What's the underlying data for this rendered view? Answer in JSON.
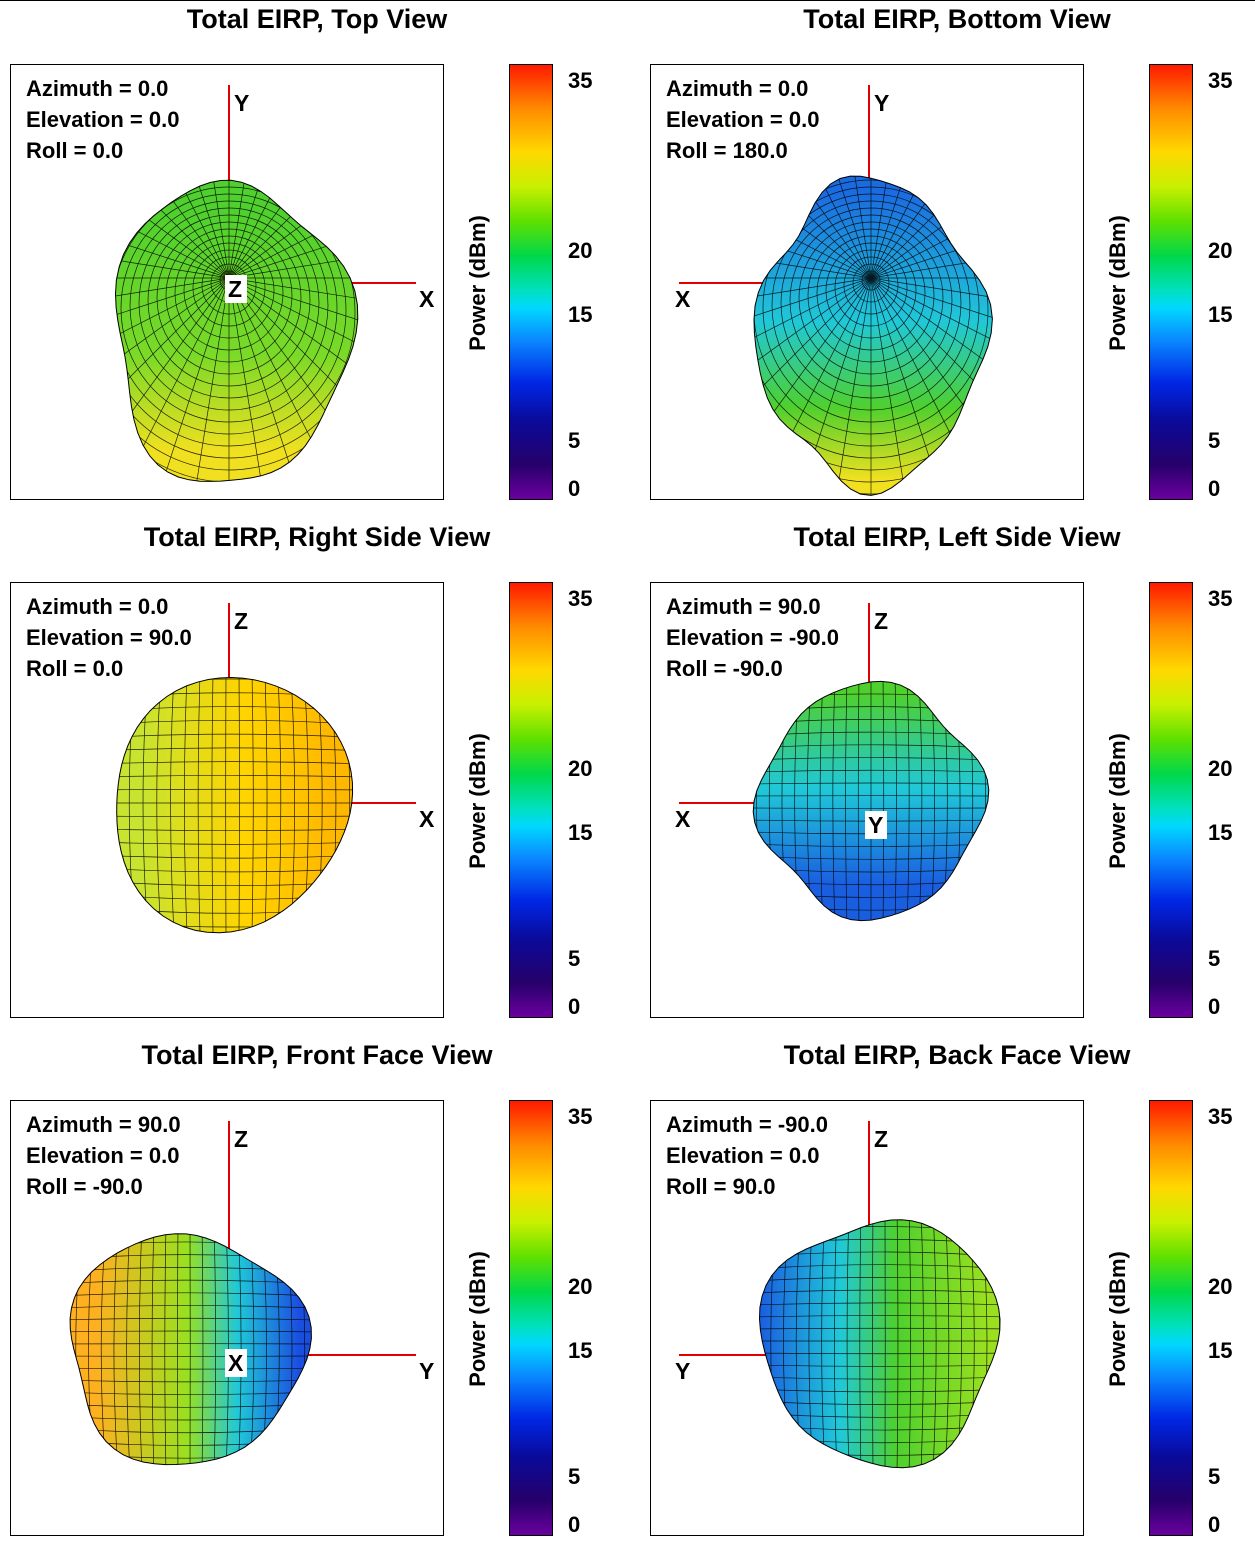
{
  "panels": [
    {
      "title": "Total EIRP, Top View",
      "params": [
        "Azimuth = 0.0",
        "Elevation = 0.0",
        "Roll = 0.0"
      ],
      "axes": {
        "up": "Y",
        "side": "X",
        "side_dir": "right",
        "center": "Z"
      },
      "scheme": "top"
    },
    {
      "title": "Total EIRP, Bottom View",
      "params": [
        "Azimuth = 0.0",
        "Elevation = 0.0",
        "Roll = 180.0"
      ],
      "axes": {
        "up": "Y",
        "side": "X",
        "side_dir": "left",
        "center": ""
      },
      "scheme": "bottom"
    },
    {
      "title": "Total EIRP, Right Side View",
      "params": [
        "Azimuth = 0.0",
        "Elevation = 90.0",
        "Roll = 0.0"
      ],
      "axes": {
        "up": "Z",
        "side": "X",
        "side_dir": "right",
        "center": ""
      },
      "scheme": "right"
    },
    {
      "title": "Total EIRP, Left Side View",
      "params": [
        "Azimuth = 90.0",
        "Elevation = -90.0",
        "Roll = -90.0"
      ],
      "axes": {
        "up": "Z",
        "side": "X",
        "side_dir": "left",
        "center": "Y"
      },
      "scheme": "left"
    },
    {
      "title": "Total EIRP, Front Face View",
      "params": [
        "Azimuth = 90.0",
        "Elevation = 0.0",
        "Roll = -90.0"
      ],
      "axes": {
        "up": "Z",
        "side": "Y",
        "side_dir": "right",
        "center": "X"
      },
      "scheme": "front"
    },
    {
      "title": "Total EIRP, Back Face View",
      "params": [
        "Azimuth = -90.0",
        "Elevation = 0.0",
        "Roll = 90.0"
      ],
      "axes": {
        "up": "Z",
        "side": "Y",
        "side_dir": "left",
        "center": ""
      },
      "scheme": "back"
    }
  ],
  "colorbar": {
    "label": "Power  (dBm)",
    "ticks": [
      "35",
      "20",
      "15",
      "5",
      "0"
    ],
    "tick_values": [
      35,
      20,
      15,
      5,
      0
    ],
    "range": [
      0,
      37
    ]
  },
  "chart_data": {
    "type": "other",
    "description_free": true,
    "colorbar_range_dbm": [
      0,
      37
    ],
    "colorbar_ticks": [
      35,
      20,
      15,
      5,
      0
    ]
  }
}
